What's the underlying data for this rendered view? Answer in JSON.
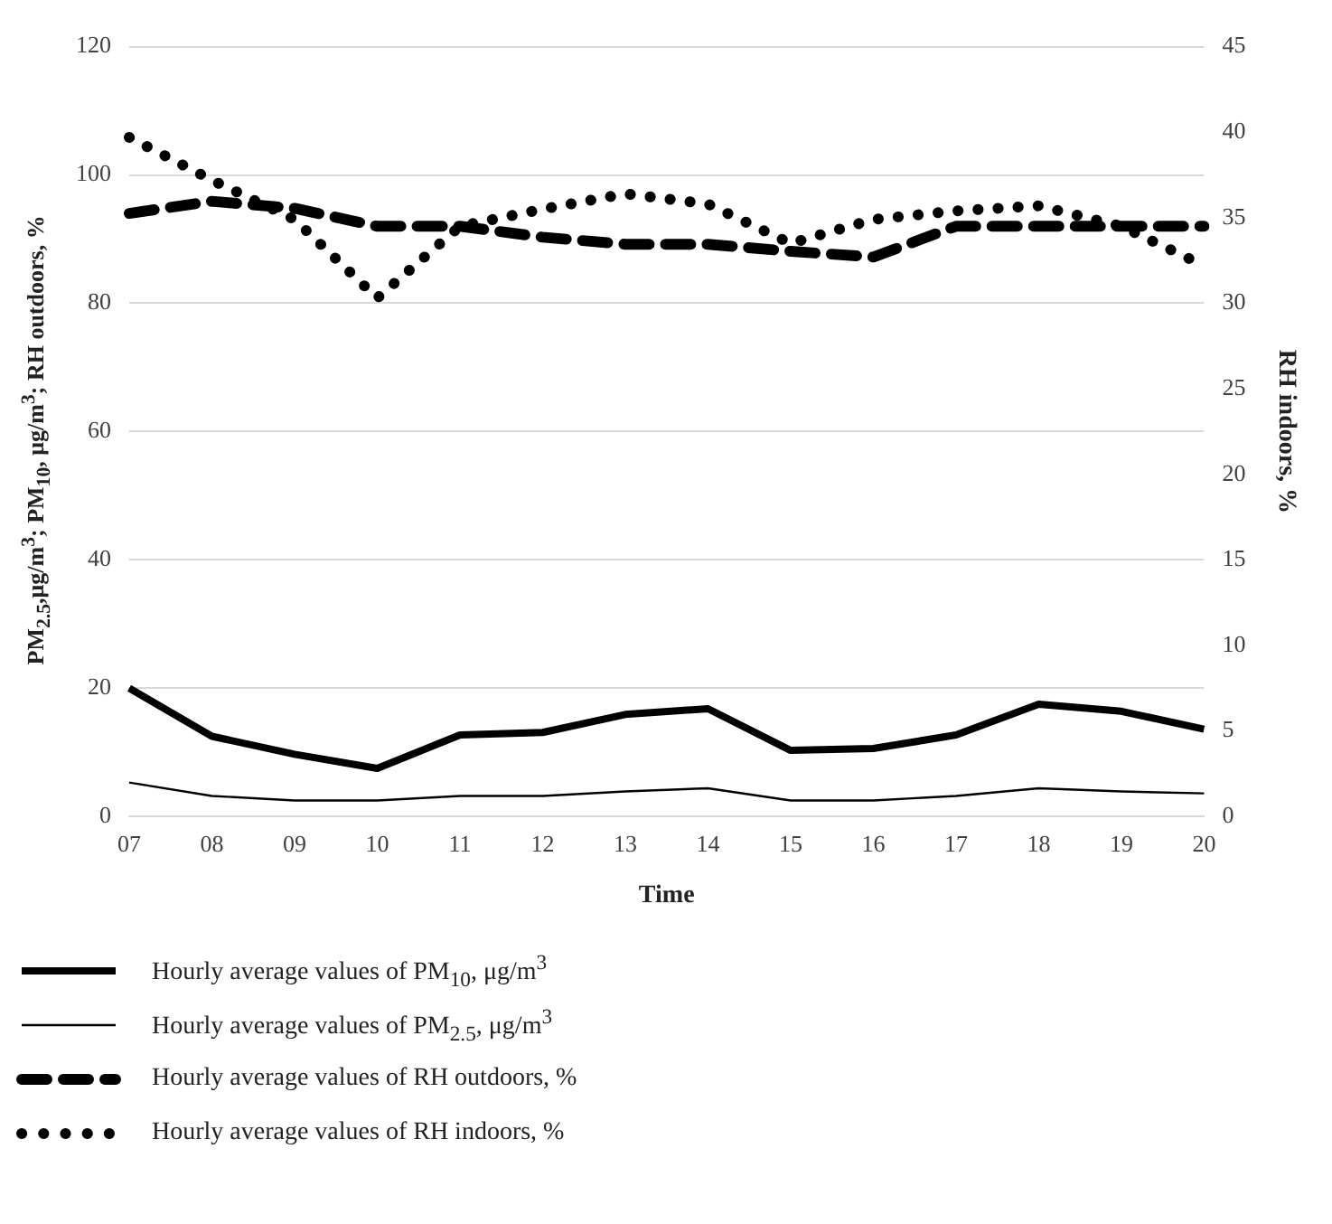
{
  "chart_data": {
    "type": "line",
    "xlabel": "Time",
    "ylabel": "PM$_{2.5}$,μg/m$^{3}$; PM$_{10}$, μg/m$^{3}$; RH outdoors, %",
    "y2label": "RH indoors, %",
    "categories": [
      "07",
      "08",
      "09",
      "10",
      "11",
      "12",
      "13",
      "14",
      "15",
      "16",
      "17",
      "18",
      "19",
      "20"
    ],
    "series": [
      {
        "name": "Hourly average values of PM$_{10}$, μg/m$^{3}$",
        "color": "#000000",
        "line_style": "solid",
        "values": [
          20,
          12.5,
          9.7,
          7.5,
          12.7,
          13.1,
          15.9,
          16.8,
          10.3,
          10.6,
          12.7,
          17.5,
          16.4,
          13.6
        ]
      },
      {
        "name": "Hourly average values of PM$_{2.5}$, μg/m$^{3}$",
        "color": "#000000",
        "line_style": "solid",
        "values": [
          5.3,
          3.2,
          2.5,
          2.5,
          3.2,
          3.2,
          3.9,
          4.4,
          2.5,
          2.5,
          3.2,
          4.4,
          3.9,
          3.6
        ]
      },
      {
        "name": "Hourly average values of RH outdoors, %",
        "color": "#000000",
        "line_style": "dashed",
        "values": [
          94,
          95.9,
          94.8,
          92,
          92,
          90.3,
          89.2,
          89.2,
          88.1,
          87.2,
          92,
          92,
          92,
          92
        ]
      },
      {
        "name": "Hourly average values of RH indoors, %",
        "color": "#000000",
        "line_style": "dotted",
        "axis": "y2",
        "values": [
          39.7,
          37.2,
          34.9,
          30.3,
          34.5,
          35.5,
          36.4,
          35.8,
          33.5,
          34.9,
          35.4,
          35.7,
          34.5,
          32.2
        ]
      }
    ],
    "ylim": [
      0,
      120
    ],
    "yticks": [
      0,
      20,
      40,
      60,
      80,
      100,
      120
    ],
    "y2lim": [
      0,
      45
    ],
    "y2ticks": [
      0,
      5,
      10,
      15,
      20,
      25,
      30,
      35,
      40,
      45
    ],
    "grid": "y",
    "legend": "bottom",
    "marker": "none"
  }
}
